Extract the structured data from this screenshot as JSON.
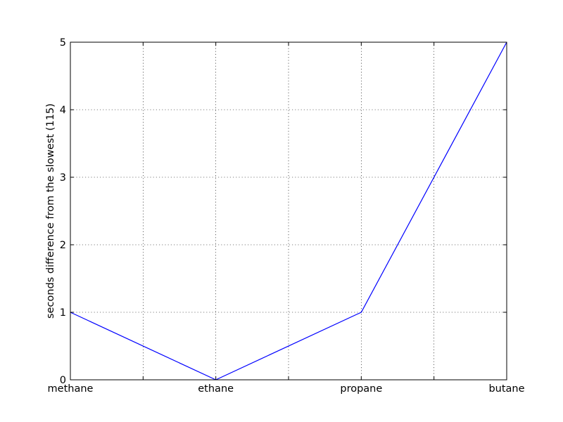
{
  "chart_data": {
    "type": "line",
    "categories": [
      "methane",
      "ethane",
      "propane",
      "butane"
    ],
    "series": [
      {
        "values": [
          1,
          0,
          1,
          5
        ],
        "color": "#0000ff"
      }
    ],
    "title": "",
    "xlabel": "",
    "ylabel": "seconds difference from the slowest (115)",
    "ylim": [
      0,
      5
    ],
    "yticks": [
      "0",
      "1",
      "2",
      "3",
      "4",
      "5"
    ],
    "grid": true
  }
}
